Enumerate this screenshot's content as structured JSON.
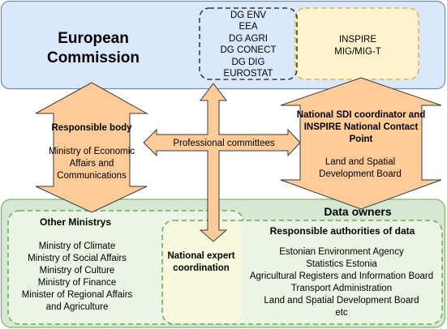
{
  "european_commission": {
    "title_line1": "European",
    "title_line2": "Commission",
    "dgs": [
      "DG ENV",
      "EEA",
      "DG AGRI",
      "DG CONECT",
      "DG DIG",
      "EUROSTAT"
    ],
    "inspire": [
      "INSPIRE",
      "MIG/MIG-T"
    ]
  },
  "responsible_body": {
    "heading": "Responsible body",
    "text": "Ministry of Economic Affairs and Communications"
  },
  "national_sdi": {
    "heading": "National SDI coordinator and INSPIRE National Contact Point",
    "text": "Land and Spatial Development Board"
  },
  "professional_committees": "Professional committees",
  "data_owners": {
    "heading": "Data owners",
    "other_ministries": {
      "heading": "Other Ministrys",
      "items": [
        "Ministry of Climate",
        "Ministry of Social Affairs",
        "Ministry of Culture",
        "Ministry of Finance",
        "Minister of Regional Affairs",
        "and Agriculture"
      ]
    },
    "national_expert": "National expert coordination",
    "responsible_authorities": {
      "heading": "Responsible authorities of data",
      "items": [
        "Estonian Environment Agency",
        "Statistics Estonia",
        "Agricultural Registers and Information Board",
        "Transport Administration",
        "Land and Spatial Development Board",
        "etc"
      ]
    }
  },
  "colors": {
    "ec_fill": "#dae8fc",
    "ec_stroke": "#6c8ebf",
    "inspire_fill": "#fff2cc",
    "inspire_stroke": "#d6b656",
    "arrow_fill": "#ffcc99",
    "arrow_stroke": "#36393d",
    "owners_fill": "#d5e8d4",
    "owners_stroke": "#82b366",
    "dashed_green": "#82b366",
    "inner_green_fill": "#ebf4e5",
    "expert_fill": "#f7f9dc"
  }
}
